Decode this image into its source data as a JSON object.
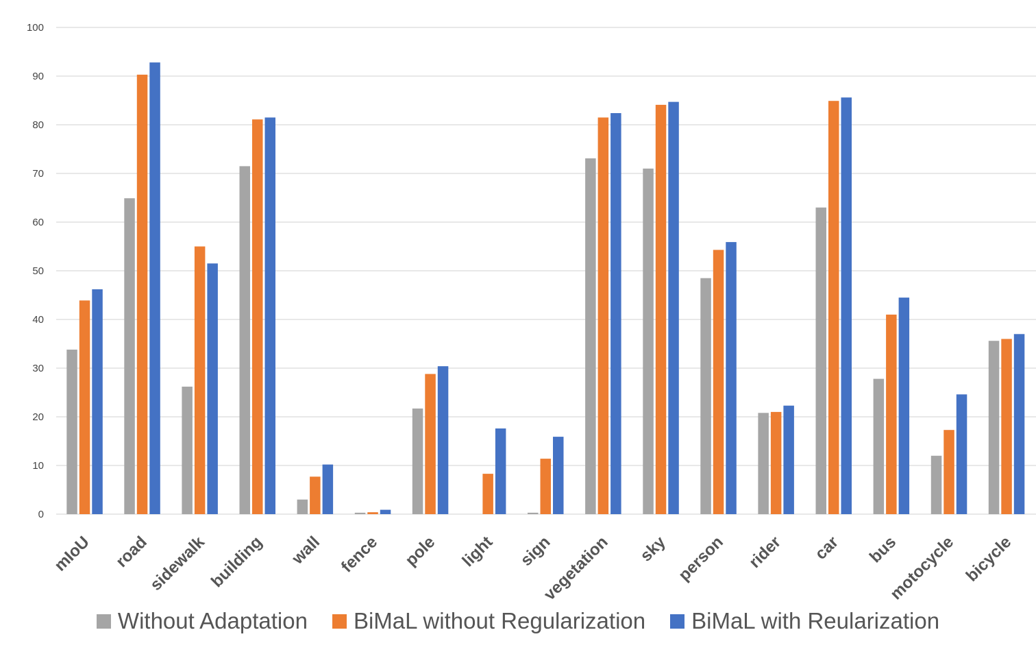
{
  "chart_data": {
    "type": "bar",
    "title": "",
    "xlabel": "",
    "ylabel": "",
    "ylim": [
      0,
      100
    ],
    "yticks": [
      0,
      10,
      20,
      30,
      40,
      50,
      60,
      70,
      80,
      90,
      100
    ],
    "grid": true,
    "legend_position": "bottom",
    "categories": [
      "mIoU",
      "road",
      "sidewalk",
      "building",
      "wall",
      "fence",
      "pole",
      "light",
      "sign",
      "vegetation",
      "sky",
      "person",
      "rider",
      "car",
      "bus",
      "motocycle",
      "bicycle"
    ],
    "series": [
      {
        "name": "Without Adaptation",
        "color": "#a5a5a5",
        "values": [
          33.8,
          64.9,
          26.2,
          71.5,
          3.0,
          0.3,
          21.7,
          0.0,
          0.3,
          73.1,
          71.0,
          48.5,
          20.8,
          63.0,
          27.8,
          12.0,
          35.6
        ]
      },
      {
        "name": "BiMaL without Regularization",
        "color": "#ed7d31",
        "values": [
          43.9,
          90.3,
          55.0,
          81.1,
          7.7,
          0.4,
          28.8,
          8.3,
          11.4,
          81.5,
          84.1,
          54.3,
          21.0,
          84.9,
          41.0,
          17.3,
          36.0
        ]
      },
      {
        "name": "BiMaL with Reularization",
        "color": "#4472c4",
        "values": [
          46.2,
          92.8,
          51.5,
          81.5,
          10.2,
          0.9,
          30.4,
          17.6,
          15.9,
          82.4,
          84.7,
          55.9,
          22.3,
          85.6,
          44.5,
          24.6,
          37.0
        ]
      }
    ]
  }
}
